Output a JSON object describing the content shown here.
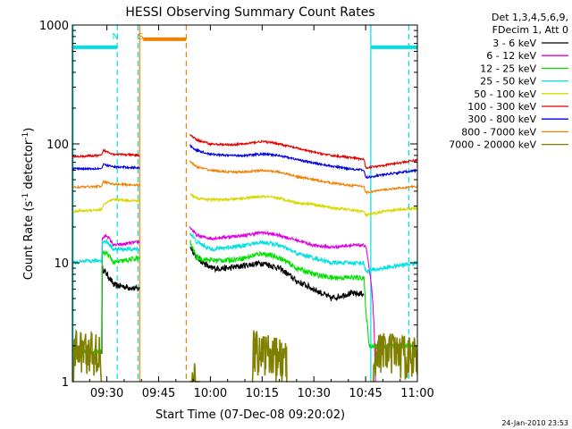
{
  "chart_data": {
    "type": "line",
    "title": "HESSI Observing Summary Count Rates",
    "xlabel": "Start Time (07-Dec-08 09:20:02)",
    "ylabel_main": "Count Rate (s",
    "ylabel_sup1": "-1",
    "ylabel_mid": " detector",
    "ylabel_sup2": "-1",
    "ylabel_end": ")",
    "yscale": "log",
    "ylim": [
      1,
      1000
    ],
    "xlim_minutes": [
      0,
      100
    ],
    "x_unit": "minutes after 09:20:02",
    "y_ticks": [
      {
        "value": 1,
        "label": "1"
      },
      {
        "value": 10,
        "label": "10"
      },
      {
        "value": 100,
        "label": "100"
      },
      {
        "value": 1000,
        "label": "1000"
      }
    ],
    "x_ticks": [
      {
        "value": 10,
        "label": "09:30"
      },
      {
        "value": 25,
        "label": "09:45"
      },
      {
        "value": 40,
        "label": "10:00"
      },
      {
        "value": 55,
        "label": "10:15"
      },
      {
        "value": 70,
        "label": "10:30"
      },
      {
        "value": 85,
        "label": "10:45"
      },
      {
        "value": 100,
        "label": "11:00"
      }
    ],
    "legend": {
      "placement": "right",
      "header_line1": "Det 1,3,4,5,6,9,",
      "header_line2": "FDecim 1, Att 0"
    },
    "gaps": [
      [
        19.5,
        34
      ]
    ],
    "series": [
      {
        "name": "3 - 6 keV",
        "color": "#000000",
        "noise": 0.06,
        "points": [
          [
            0,
            0
          ],
          [
            8.5,
            0
          ],
          [
            8.6,
            9
          ],
          [
            10,
            8
          ],
          [
            12,
            6.5
          ],
          [
            19.5,
            6
          ],
          [
            34,
            14
          ],
          [
            36,
            11
          ],
          [
            40,
            9
          ],
          [
            45,
            9
          ],
          [
            50,
            9.5
          ],
          [
            55,
            10
          ],
          [
            60,
            9
          ],
          [
            65,
            7
          ],
          [
            70,
            6
          ],
          [
            75,
            5
          ],
          [
            80,
            5.5
          ],
          [
            84.5,
            5.5
          ],
          [
            84.6,
            0
          ],
          [
            100,
            0
          ]
        ]
      },
      {
        "name": "6 - 12 keV",
        "color": "#e000e0",
        "noise": 0.03,
        "points": [
          [
            0,
            0
          ],
          [
            8.5,
            0
          ],
          [
            8.6,
            16
          ],
          [
            10,
            17
          ],
          [
            12,
            14
          ],
          [
            19.5,
            15
          ],
          [
            34,
            20
          ],
          [
            36,
            17
          ],
          [
            40,
            16
          ],
          [
            45,
            16.5
          ],
          [
            50,
            17
          ],
          [
            55,
            18
          ],
          [
            60,
            17
          ],
          [
            65,
            15.5
          ],
          [
            70,
            14
          ],
          [
            75,
            13.5
          ],
          [
            80,
            14
          ],
          [
            85,
            14
          ],
          [
            86,
            9
          ],
          [
            87,
            5
          ],
          [
            88,
            0
          ],
          [
            100,
            0
          ]
        ]
      },
      {
        "name": "12 - 25 keV",
        "color": "#00e000",
        "noise": 0.05,
        "points": [
          [
            0,
            1.8
          ],
          [
            8.5,
            1.8
          ],
          [
            8.6,
            12
          ],
          [
            10,
            12
          ],
          [
            12,
            10
          ],
          [
            19.5,
            11
          ],
          [
            34,
            15
          ],
          [
            36,
            11
          ],
          [
            40,
            10.5
          ],
          [
            45,
            10.5
          ],
          [
            50,
            11
          ],
          [
            55,
            12
          ],
          [
            60,
            11
          ],
          [
            65,
            9
          ],
          [
            70,
            8
          ],
          [
            75,
            7.5
          ],
          [
            80,
            7.5
          ],
          [
            84.5,
            7.5
          ],
          [
            85,
            4
          ],
          [
            86,
            2
          ],
          [
            100,
            2
          ]
        ]
      },
      {
        "name": "25 - 50 keV",
        "color": "#00e0e0",
        "noise": 0.04,
        "points": [
          [
            0,
            10
          ],
          [
            8.5,
            10.5
          ],
          [
            8.6,
            15
          ],
          [
            10,
            15
          ],
          [
            12,
            13
          ],
          [
            19.5,
            13
          ],
          [
            34,
            18
          ],
          [
            36,
            15
          ],
          [
            40,
            13
          ],
          [
            45,
            13.5
          ],
          [
            50,
            14
          ],
          [
            55,
            15
          ],
          [
            60,
            14
          ],
          [
            65,
            12
          ],
          [
            70,
            11
          ],
          [
            75,
            10
          ],
          [
            80,
            10
          ],
          [
            84.5,
            10
          ],
          [
            85,
            8.5
          ],
          [
            90,
            9
          ],
          [
            100,
            10
          ]
        ]
      },
      {
        "name": "50 - 100 keV",
        "color": "#d8d800",
        "noise": 0.025,
        "points": [
          [
            0,
            27
          ],
          [
            8.5,
            28
          ],
          [
            9,
            31
          ],
          [
            12,
            34
          ],
          [
            19.5,
            33
          ],
          [
            34,
            38
          ],
          [
            36,
            35
          ],
          [
            40,
            34
          ],
          [
            45,
            34
          ],
          [
            50,
            35
          ],
          [
            55,
            36
          ],
          [
            60,
            35
          ],
          [
            65,
            32
          ],
          [
            70,
            31
          ],
          [
            75,
            29
          ],
          [
            80,
            28
          ],
          [
            84.5,
            27
          ],
          [
            85,
            25
          ],
          [
            90,
            27
          ],
          [
            100,
            29
          ]
        ]
      },
      {
        "name": "100 - 300 keV",
        "color": "#e00000",
        "noise": 0.02,
        "points": [
          [
            0,
            78
          ],
          [
            8.5,
            80
          ],
          [
            9,
            88
          ],
          [
            12,
            82
          ],
          [
            19.5,
            80
          ],
          [
            34,
            120
          ],
          [
            36,
            108
          ],
          [
            40,
            100
          ],
          [
            45,
            98
          ],
          [
            50,
            100
          ],
          [
            55,
            105
          ],
          [
            60,
            100
          ],
          [
            65,
            92
          ],
          [
            70,
            85
          ],
          [
            75,
            80
          ],
          [
            80,
            77
          ],
          [
            84.5,
            74
          ],
          [
            85,
            63
          ],
          [
            90,
            66
          ],
          [
            100,
            73
          ]
        ]
      },
      {
        "name": "300 - 800 keV",
        "color": "#0000e0",
        "noise": 0.02,
        "points": [
          [
            0,
            62
          ],
          [
            8.5,
            62
          ],
          [
            9,
            67
          ],
          [
            12,
            64
          ],
          [
            19.5,
            63
          ],
          [
            34,
            97
          ],
          [
            36,
            88
          ],
          [
            40,
            82
          ],
          [
            45,
            80
          ],
          [
            50,
            80
          ],
          [
            55,
            82
          ],
          [
            60,
            80
          ],
          [
            65,
            74
          ],
          [
            70,
            69
          ],
          [
            75,
            65
          ],
          [
            80,
            62
          ],
          [
            84.5,
            60
          ],
          [
            85,
            52
          ],
          [
            90,
            55
          ],
          [
            100,
            60
          ]
        ]
      },
      {
        "name": "800 - 7000 keV",
        "color": "#f08000",
        "noise": 0.02,
        "points": [
          [
            0,
            43
          ],
          [
            8.5,
            44
          ],
          [
            9,
            48
          ],
          [
            12,
            46
          ],
          [
            19.5,
            45
          ],
          [
            34,
            72
          ],
          [
            36,
            64
          ],
          [
            40,
            60
          ],
          [
            45,
            58
          ],
          [
            50,
            58
          ],
          [
            55,
            60
          ],
          [
            60,
            58
          ],
          [
            65,
            53
          ],
          [
            70,
            50
          ],
          [
            75,
            47
          ],
          [
            80,
            45
          ],
          [
            84.5,
            44
          ],
          [
            85,
            39
          ],
          [
            90,
            41
          ],
          [
            100,
            44
          ]
        ]
      },
      {
        "name": "7000 - 20000 keV",
        "color": "#808000",
        "noise": 0.0,
        "points": [
          [
            0,
            0
          ],
          [
            0.5,
            2.3
          ],
          [
            8,
            2.1
          ],
          [
            8.5,
            0
          ],
          [
            34,
            0
          ],
          [
            35,
            1.5
          ],
          [
            37,
            0
          ],
          [
            52,
            0
          ],
          [
            52.5,
            2.3
          ],
          [
            62,
            1.8
          ],
          [
            62.5,
            0
          ],
          [
            87,
            0
          ],
          [
            87.5,
            2.2
          ],
          [
            100,
            2.0
          ]
        ]
      }
    ],
    "annotations": [
      {
        "label": "N",
        "color": "#00e0e0",
        "x": 12.5
      },
      {
        "label": "S",
        "color": "#f08000",
        "x": 19.8
      }
    ],
    "verticals": [
      {
        "x": 0.2,
        "color": "#00e0e0",
        "style": "solid"
      },
      {
        "x": 13,
        "color": "#00e0e0",
        "style": "dashed"
      },
      {
        "x": 19,
        "color": "#00e0e0",
        "style": "dashed"
      },
      {
        "x": 19.5,
        "color": "#f08000",
        "style": "solid"
      },
      {
        "x": 33,
        "color": "#f08000",
        "style": "dashed"
      },
      {
        "x": 86.5,
        "color": "#00e0e0",
        "style": "solid"
      },
      {
        "x": 97.5,
        "color": "#00e0e0",
        "style": "dashed"
      }
    ],
    "bars": [
      {
        "from": 0.2,
        "to": 13,
        "value": 650,
        "color": "#00e0e0"
      },
      {
        "from": 20.5,
        "to": 33,
        "value": 760,
        "color": "#f08000"
      },
      {
        "from": 86.5,
        "to": 100,
        "value": 650,
        "color": "#00e0e0"
      }
    ],
    "timestamp": "24-Jan-2010 23:53"
  }
}
